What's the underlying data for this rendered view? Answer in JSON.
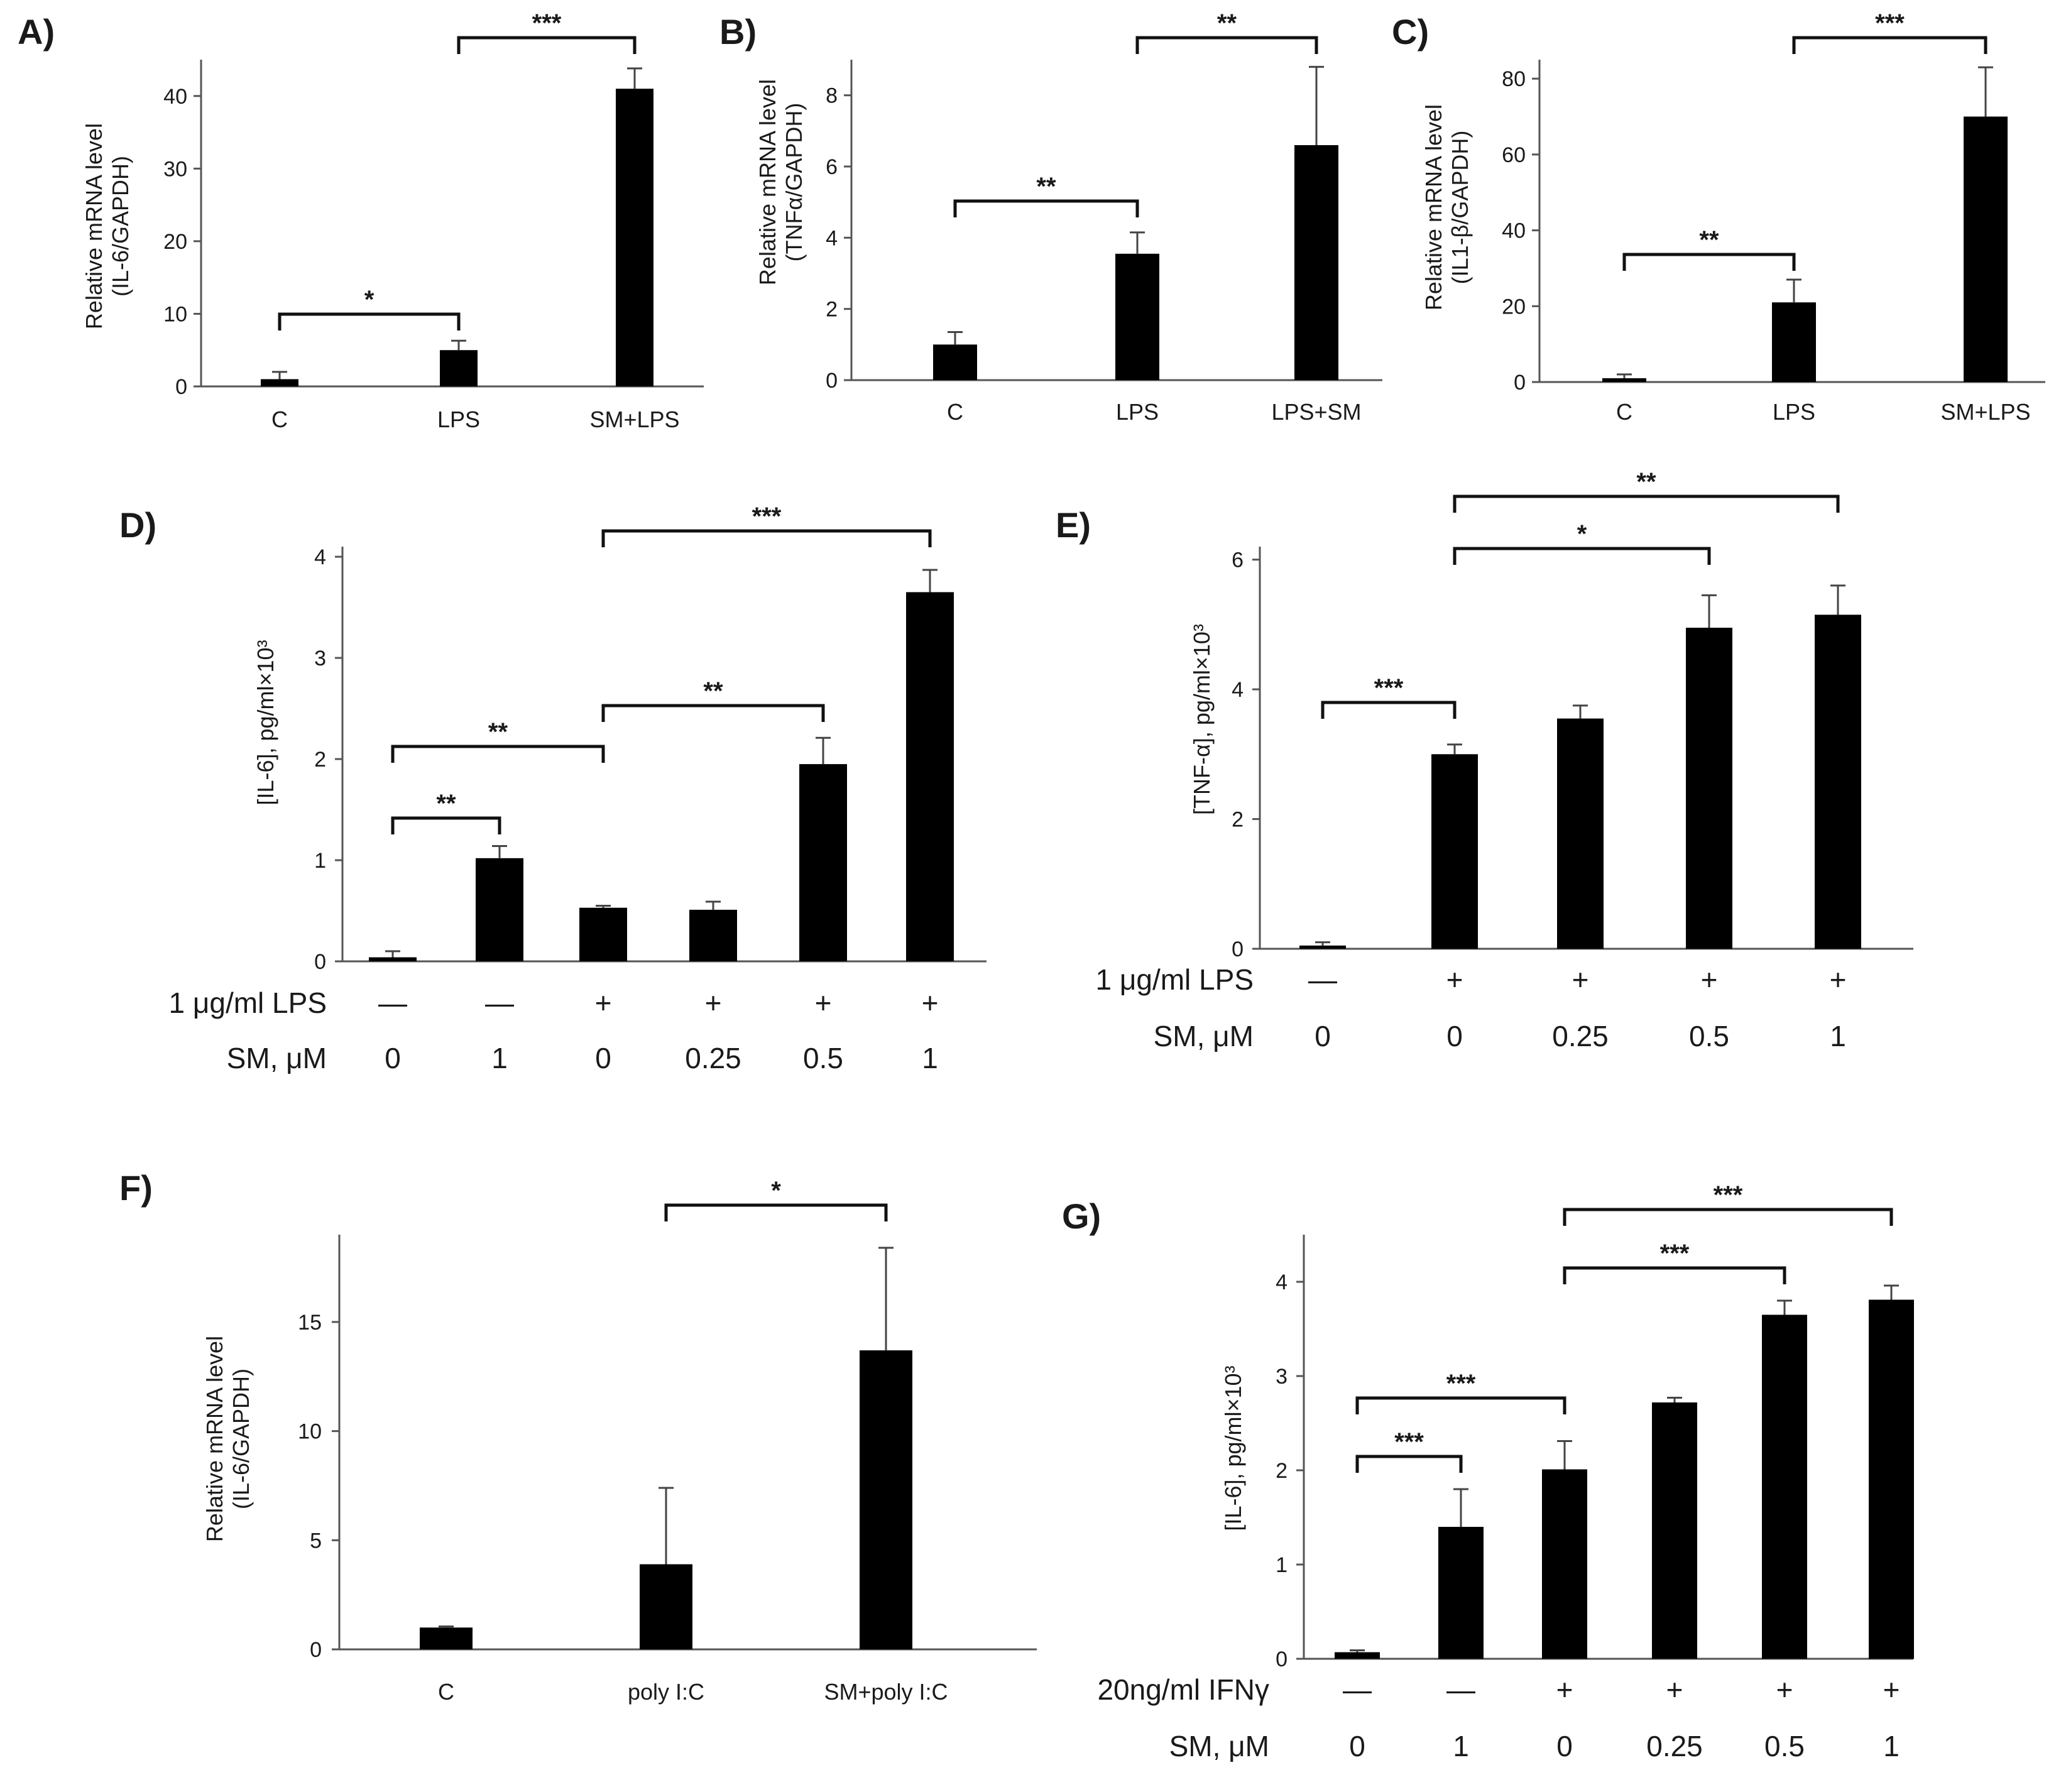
{
  "chart_data": [
    {
      "panel": "A)",
      "type": "bar",
      "categories": [
        "C",
        "LPS",
        "SM+LPS"
      ],
      "values": [
        1.0,
        5.0,
        41.0
      ],
      "errors": [
        1.0,
        1.3,
        2.8
      ],
      "ylabel": [
        "Relative mRNA level",
        "(IL-6/GAPDH)"
      ],
      "ylim": [
        0,
        45
      ],
      "yticks": [
        "0",
        "10",
        "20",
        "30",
        "40"
      ],
      "significance": [
        {
          "from": 0,
          "to": 1,
          "label": "*"
        },
        {
          "from": 1,
          "to": 2,
          "label": "***"
        }
      ]
    },
    {
      "panel": "B)",
      "type": "bar",
      "categories": [
        "C",
        "LPS",
        "LPS+SM"
      ],
      "values": [
        1.0,
        3.55,
        6.6
      ],
      "errors": [
        0.35,
        0.6,
        2.2
      ],
      "ylabel": [
        "Relative mRNA level",
        "(TNFα/GAPDH)"
      ],
      "ylim": [
        0,
        9
      ],
      "yticks": [
        "0",
        "2",
        "4",
        "6",
        "8"
      ],
      "significance": [
        {
          "from": 0,
          "to": 1,
          "label": "**"
        },
        {
          "from": 1,
          "to": 2,
          "label": "**"
        }
      ]
    },
    {
      "panel": "C)",
      "type": "bar",
      "categories": [
        "C",
        "LPS",
        "SM+LPS"
      ],
      "values": [
        1.0,
        21.0,
        70.0
      ],
      "errors": [
        1.0,
        6.0,
        13.0
      ],
      "ylabel": [
        "Relative mRNA level",
        "(IL1-β/GAPDH)"
      ],
      "ylim": [
        0,
        85
      ],
      "yticks": [
        "0",
        "20",
        "40",
        "60",
        "80"
      ],
      "significance": [
        {
          "from": 0,
          "to": 1,
          "label": "**"
        },
        {
          "from": 1,
          "to": 2,
          "label": "***"
        }
      ]
    },
    {
      "panel": "D)",
      "type": "bar",
      "values": [
        0.04,
        1.02,
        0.53,
        0.51,
        1.95,
        3.65
      ],
      "errors": [
        0.06,
        0.12,
        0.02,
        0.08,
        0.26,
        0.22
      ],
      "ylabel": [
        "[IL-6], pg/ml×10³"
      ],
      "ylim": [
        0,
        4.1
      ],
      "yticks": [
        "0",
        "1",
        "2",
        "3",
        "4"
      ],
      "conditions": [
        {
          "label": "1 μg/ml LPS",
          "values": [
            "—",
            "—",
            "+",
            "+",
            "+",
            "+"
          ]
        },
        {
          "label": "SM, μM",
          "values": [
            "0",
            "1",
            "0",
            "0.25",
            "0.5",
            "1"
          ]
        }
      ],
      "significance": [
        {
          "from": 0,
          "to": 1,
          "label": "**"
        },
        {
          "from": 0,
          "to": 2,
          "label": "**"
        },
        {
          "from": 2,
          "to": 4,
          "label": "**"
        },
        {
          "from": 2,
          "to": 5,
          "label": "***"
        }
      ]
    },
    {
      "panel": "E)",
      "type": "bar",
      "values": [
        0.05,
        3.0,
        3.55,
        4.95,
        5.15
      ],
      "errors": [
        0.05,
        0.15,
        0.2,
        0.5,
        0.45
      ],
      "ylabel": [
        "[TNF-α], pg/ml×10³"
      ],
      "ylim": [
        0,
        6.2
      ],
      "yticks": [
        "0",
        "2",
        "4",
        "6"
      ],
      "conditions": [
        {
          "label": "1 μg/ml LPS",
          "values": [
            "—",
            "+",
            "+",
            "+",
            "+"
          ]
        },
        {
          "label": "SM, μM",
          "values": [
            "0",
            "0",
            "0.25",
            "0.5",
            "1"
          ]
        }
      ],
      "significance": [
        {
          "from": 0,
          "to": 1,
          "label": "***"
        },
        {
          "from": 1,
          "to": 3,
          "label": "*"
        },
        {
          "from": 1,
          "to": 4,
          "label": "**"
        }
      ]
    },
    {
      "panel": "F)",
      "type": "bar",
      "categories": [
        "C",
        "poly I:C",
        "SM+poly I:C"
      ],
      "values": [
        1.0,
        3.9,
        13.7
      ],
      "errors": [
        0.05,
        3.5,
        4.7
      ],
      "ylabel": [
        "Relative mRNA level",
        "(IL-6/GAPDH)"
      ],
      "ylim": [
        0,
        19
      ],
      "yticks": [
        "0",
        "5",
        "10",
        "15"
      ],
      "significance": [
        {
          "from": 1,
          "to": 2,
          "label": "*"
        }
      ]
    },
    {
      "panel": "G)",
      "type": "bar",
      "values": [
        0.07,
        1.4,
        2.01,
        2.72,
        3.65,
        3.81
      ],
      "errors": [
        0.02,
        0.4,
        0.3,
        0.05,
        0.15,
        0.15
      ],
      "ylabel": [
        "[IL-6], pg/ml×10³"
      ],
      "ylim": [
        0,
        4.5
      ],
      "yticks": [
        "0",
        "1",
        "2",
        "3",
        "4"
      ],
      "conditions": [
        {
          "label": "20ng/ml IFNγ",
          "values": [
            "—",
            "—",
            "+",
            "+",
            "+",
            "+"
          ]
        },
        {
          "label": "SM, μM",
          "values": [
            "0",
            "1",
            "0",
            "0.25",
            "0.5",
            "1"
          ]
        }
      ],
      "significance": [
        {
          "from": 0,
          "to": 1,
          "label": "***"
        },
        {
          "from": 0,
          "to": 2,
          "label": "***"
        },
        {
          "from": 2,
          "to": 4,
          "label": "***"
        },
        {
          "from": 2,
          "to": 5,
          "label": "***"
        }
      ]
    }
  ]
}
